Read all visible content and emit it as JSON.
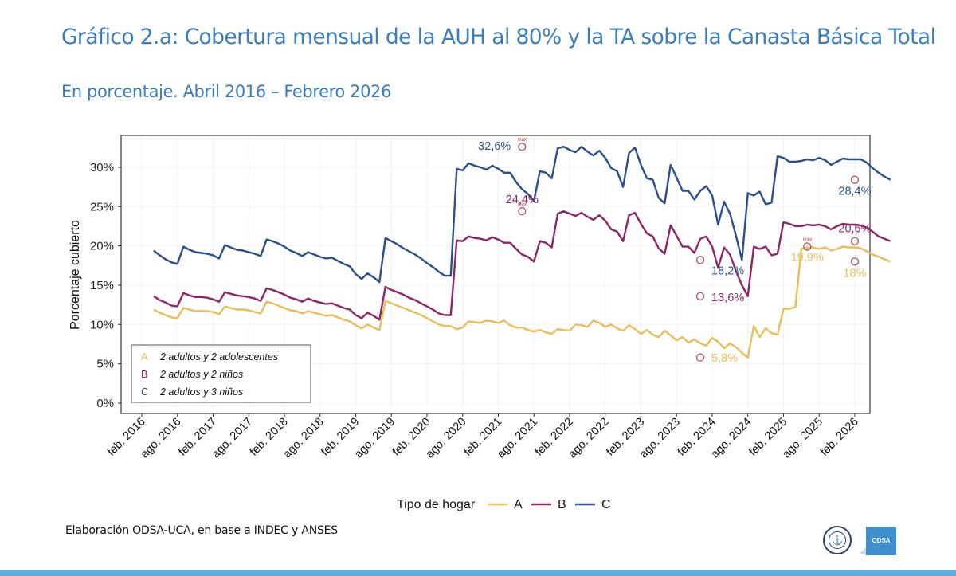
{
  "header": {
    "title": "Gráfico 2.a: Cobertura mensual de la AUH al 80% y la TA sobre la Canasta Básica Total",
    "subtitle": "En porcentaje. Abril 2016 – Febrero 2026"
  },
  "footer": {
    "source_note": "Elaboración ODSA-UCA, en base a INDEC y ANSES",
    "logo_odsa_label": "ODSA",
    "logo_seal_glyph": "⚓"
  },
  "chart_data": {
    "type": "line",
    "title": "Gráfico 2.a: Cobertura mensual de la AUH al 80% y la TA sobre la Canasta Básica Total",
    "subtitle": "En porcentaje. Abril 2016 – Febrero 2026",
    "xlabel": "",
    "ylabel": "Porcentaje cubierto",
    "ylim": [
      0,
      33.5
    ],
    "yticks": [
      0,
      5,
      10,
      15,
      20,
      25,
      30
    ],
    "ytick_labels": [
      "0%",
      "5%",
      "10%",
      "15%",
      "20%",
      "25%",
      "30%"
    ],
    "x_start": "2016-04",
    "x_end": "2026-02",
    "xlim_months_from_feb2016": [
      -3,
      123
    ],
    "xticks": [
      "feb. 2016",
      "ago. 2016",
      "feb. 2017",
      "ago. 2017",
      "feb. 2018",
      "ago. 2018",
      "feb. 2019",
      "ago. 2019",
      "feb. 2020",
      "ago. 2020",
      "feb. 2021",
      "ago. 2021",
      "feb. 2022",
      "ago. 2022",
      "feb. 2023",
      "ago. 2023",
      "feb. 2024",
      "ago. 2024",
      "feb. 2025",
      "ago. 2025",
      "feb. 2026"
    ],
    "grid": true,
    "legend_position": "bottom",
    "legend_title": "Tipo de hogar",
    "inner_legend": {
      "position": "bottom-left",
      "entries": [
        {
          "key": "A",
          "label": "2 adultos y 2 adolescentes"
        },
        {
          "key": "B",
          "label": "2 adultos y 2 niños"
        },
        {
          "key": "C",
          "label": "2 adultos y 3 niños"
        }
      ]
    },
    "series": [
      {
        "name": "A",
        "color": "#e8bd5a",
        "values": [
          11.9,
          11.5,
          11.2,
          10.9,
          10.8,
          12.1,
          11.9,
          11.7,
          11.7,
          11.7,
          11.6,
          11.3,
          12.3,
          12.1,
          11.9,
          11.9,
          11.8,
          11.6,
          11.4,
          12.9,
          12.7,
          12.4,
          12.1,
          11.8,
          11.7,
          11.4,
          11.7,
          11.5,
          11.3,
          11.1,
          11.2,
          10.9,
          10.6,
          10.4,
          9.9,
          9.5,
          10.0,
          9.6,
          9.3,
          13.0,
          12.7,
          12.4,
          12.1,
          11.8,
          11.5,
          11.2,
          10.8,
          10.4,
          10.0,
          9.8,
          9.8,
          9.4,
          9.6,
          10.4,
          10.3,
          10.2,
          10.5,
          10.4,
          10.2,
          10.5,
          9.9,
          9.6,
          9.6,
          9.3,
          9.1,
          9.3,
          9.0,
          8.8,
          9.4,
          9.3,
          9.2,
          10.0,
          9.9,
          9.7,
          10.5,
          10.2,
          9.7,
          10.0,
          9.5,
          9.2,
          9.9,
          9.4,
          8.8,
          9.3,
          8.7,
          8.4,
          9.2,
          8.6,
          8.0,
          8.4,
          7.7,
          8.1,
          7.6,
          7.3,
          8.3,
          7.8,
          7.0,
          7.6,
          7.1,
          6.4,
          5.8,
          9.8,
          8.4,
          9.5,
          8.9,
          8.7,
          12.0,
          12.0,
          12.2,
          19.6,
          19.8,
          19.8,
          19.6,
          19.8,
          19.4,
          19.6,
          19.9,
          19.8,
          19.8,
          19.7,
          19.3,
          18.9,
          18.6,
          18.3,
          18.0
        ],
        "annotations": [
          {
            "month": "2023-12",
            "value": 5.8,
            "label": "5,8%",
            "type": "min"
          },
          {
            "month": "2025-06",
            "value": 19.9,
            "label": "19,9%",
            "type": "max",
            "tag": "máx"
          },
          {
            "month": "2026-02",
            "value": 18.0,
            "label": "18%",
            "type": "last"
          }
        ]
      },
      {
        "name": "B",
        "color": "#8e2567",
        "values": [
          13.6,
          13.1,
          12.8,
          12.4,
          12.3,
          14.0,
          13.7,
          13.5,
          13.5,
          13.4,
          13.2,
          12.9,
          14.1,
          13.9,
          13.7,
          13.6,
          13.5,
          13.3,
          13.0,
          14.6,
          14.4,
          14.1,
          13.8,
          13.4,
          13.2,
          12.9,
          13.3,
          13.0,
          12.8,
          12.6,
          12.7,
          12.4,
          12.1,
          11.9,
          11.2,
          10.8,
          11.5,
          11.1,
          10.6,
          14.8,
          14.4,
          14.1,
          13.8,
          13.4,
          13.1,
          12.7,
          12.3,
          11.9,
          11.4,
          11.2,
          11.2,
          20.7,
          20.6,
          21.2,
          21.0,
          20.9,
          20.7,
          21.1,
          20.8,
          20.4,
          20.4,
          19.6,
          18.9,
          18.6,
          18.0,
          20.6,
          20.4,
          19.8,
          24.1,
          24.4,
          24.1,
          23.8,
          24.2,
          23.7,
          23.3,
          23.9,
          23.2,
          22.1,
          21.8,
          20.6,
          23.9,
          24.2,
          22.8,
          21.6,
          21.2,
          19.7,
          19.0,
          22.6,
          21.3,
          19.9,
          19.9,
          19.1,
          20.9,
          21.2,
          19.9,
          17.2,
          19.8,
          18.9,
          16.8,
          15.0,
          13.6,
          19.9,
          19.6,
          19.9,
          18.8,
          19.0,
          23.0,
          22.8,
          22.5,
          22.5,
          22.7,
          22.6,
          22.7,
          22.5,
          22.1,
          22.5,
          22.8,
          22.7,
          22.7,
          22.6,
          22.3,
          21.8,
          21.2,
          20.9,
          20.6
        ],
        "annotations": [
          {
            "month": "2021-06",
            "value": 24.4,
            "label": "24,4%",
            "type": "max",
            "tag": "máx"
          },
          {
            "month": "2023-12",
            "value": 13.6,
            "label": "13,6%",
            "type": "min"
          },
          {
            "month": "2026-02",
            "value": 20.6,
            "label": "20,6%",
            "type": "last"
          }
        ]
      },
      {
        "name": "C",
        "color": "#2a4f8c",
        "values": [
          19.4,
          18.8,
          18.3,
          17.9,
          17.7,
          19.9,
          19.5,
          19.2,
          19.1,
          19.0,
          18.8,
          18.4,
          20.1,
          19.8,
          19.5,
          19.4,
          19.2,
          19.0,
          18.7,
          20.8,
          20.6,
          20.3,
          19.9,
          19.4,
          19.1,
          18.7,
          19.2,
          18.9,
          18.6,
          18.4,
          18.5,
          18.1,
          17.7,
          17.4,
          16.4,
          15.8,
          16.5,
          16.0,
          15.4,
          21.0,
          20.6,
          20.2,
          19.7,
          19.3,
          18.9,
          18.4,
          17.8,
          17.3,
          16.7,
          16.2,
          16.2,
          29.8,
          29.6,
          30.5,
          30.2,
          30.0,
          29.7,
          30.2,
          29.8,
          29.3,
          29.3,
          28.1,
          27.2,
          26.6,
          25.7,
          29.5,
          29.3,
          28.6,
          32.4,
          32.6,
          32.2,
          31.9,
          32.6,
          32.0,
          31.5,
          32.1,
          31.2,
          29.9,
          29.5,
          27.5,
          31.8,
          32.5,
          30.3,
          28.6,
          28.4,
          26.1,
          25.4,
          30.3,
          28.7,
          27.0,
          27.0,
          25.9,
          27.0,
          27.6,
          26.4,
          22.7,
          25.6,
          24.1,
          21.3,
          18.2,
          26.7,
          26.4,
          26.9,
          25.3,
          25.5,
          31.4,
          31.2,
          30.7,
          30.7,
          30.8,
          31.0,
          30.9,
          31.2,
          30.9,
          30.3,
          30.7,
          31.1,
          31.0,
          31.0,
          31.0,
          30.6,
          29.9,
          29.3,
          28.8,
          28.4
        ],
        "annotations": [
          {
            "month": "2021-06",
            "value": 32.6,
            "label": "32,6%",
            "type": "max",
            "tag": "máx"
          },
          {
            "month": "2023-12",
            "value": 18.2,
            "label": "18,2%",
            "type": "min"
          },
          {
            "month": "2026-02",
            "value": 28.4,
            "label": "28,4%",
            "type": "last"
          }
        ]
      }
    ]
  }
}
